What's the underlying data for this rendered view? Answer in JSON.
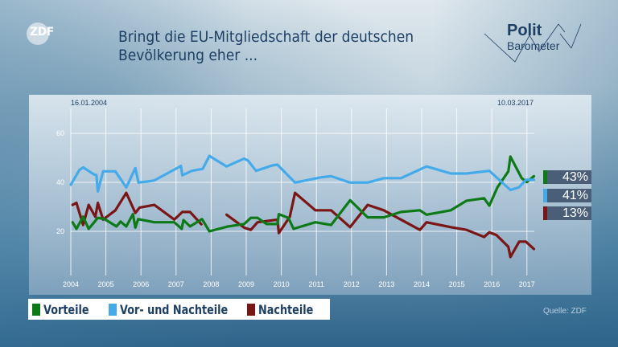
{
  "header": {
    "title_line1": "Bringt die EU-Mitgliedschaft der deutschen",
    "title_line2": "Bevölkerung eher ...",
    "logo": "ZDF",
    "brand_line1": "Polit",
    "brand_line2": "Barometer"
  },
  "source": "Quelle: ZDF",
  "chart_data": {
    "type": "line",
    "title": "Bringt die EU-Mitgliedschaft der deutschen Bevölkerung eher ...",
    "start_label": "16.01.2004",
    "end_label": "10.03.2017",
    "xlim": [
      2004,
      2017.2
    ],
    "ylim": [
      0,
      70
    ],
    "x_ticks": [
      "2004",
      "2005",
      "2006",
      "2007",
      "2008",
      "2009",
      "2010",
      "2011",
      "2012",
      "2013",
      "2014",
      "2015",
      "2016",
      "2017"
    ],
    "y_ticks": [
      "20",
      "40",
      "60"
    ],
    "grid": true,
    "legend_position": "bottom-left",
    "series": [
      {
        "name": "Vorteile",
        "color": "#0e7a17",
        "final_label": "43%",
        "points": [
          [
            2004.05,
            23.7
          ],
          [
            2004.16,
            21
          ],
          [
            2004.35,
            26
          ],
          [
            2004.51,
            21
          ],
          [
            2004.77,
            25.5
          ],
          [
            2004.96,
            25
          ],
          [
            2005.3,
            22
          ],
          [
            2005.42,
            24
          ],
          [
            2005.58,
            22
          ],
          [
            2005.77,
            27
          ],
          [
            2005.84,
            21.5
          ],
          [
            2005.92,
            25
          ],
          [
            2006.38,
            23.7
          ],
          [
            2006.95,
            23.7
          ],
          [
            2007.16,
            21
          ],
          [
            2007.21,
            24.6
          ],
          [
            2007.4,
            22
          ],
          [
            2007.74,
            25
          ],
          [
            2007.95,
            20
          ],
          [
            2008.48,
            22
          ],
          [
            2008.94,
            23
          ],
          [
            2009.13,
            25.5
          ],
          [
            2009.32,
            25.5
          ],
          [
            2009.58,
            23
          ],
          [
            2009.89,
            23
          ],
          [
            2009.93,
            27
          ],
          [
            2010.2,
            25.5
          ],
          [
            2010.35,
            21
          ],
          [
            2010.97,
            23.7
          ],
          [
            2011.42,
            22.6
          ],
          [
            2011.96,
            32.7
          ],
          [
            2012.46,
            25.7
          ],
          [
            2012.92,
            25.7
          ],
          [
            2013.41,
            27.9
          ],
          [
            2013.95,
            28.6
          ],
          [
            2014.14,
            26.8
          ],
          [
            2014.83,
            28.6
          ],
          [
            2015.28,
            32.5
          ],
          [
            2015.78,
            33.5
          ],
          [
            2015.93,
            30.5
          ],
          [
            2016.16,
            38
          ],
          [
            2016.47,
            44.5
          ],
          [
            2016.53,
            50.5
          ],
          [
            2016.85,
            41.7
          ],
          [
            2017.0,
            40.1
          ],
          [
            2017.2,
            42.5
          ]
        ]
      },
      {
        "name": "Vor- und Nachteile",
        "color": "#45aaea",
        "final_label": "41%",
        "points": [
          [
            2004.0,
            39
          ],
          [
            2004.24,
            45
          ],
          [
            2004.35,
            46.1
          ],
          [
            2004.66,
            43.2
          ],
          [
            2004.73,
            43
          ],
          [
            2004.77,
            36.3
          ],
          [
            2004.92,
            44.5
          ],
          [
            2005.27,
            44.5
          ],
          [
            2005.58,
            37.9
          ],
          [
            2005.84,
            45.8
          ],
          [
            2005.93,
            39.9
          ],
          [
            2006.37,
            40.7
          ],
          [
            2007.14,
            46.7
          ],
          [
            2007.18,
            42.9
          ],
          [
            2007.45,
            44.7
          ],
          [
            2007.76,
            45.5
          ],
          [
            2007.95,
            50.8
          ],
          [
            2008.44,
            46.5
          ],
          [
            2008.94,
            49.7
          ],
          [
            2009.05,
            48.9
          ],
          [
            2009.28,
            44.7
          ],
          [
            2009.74,
            46.9
          ],
          [
            2009.89,
            47.2
          ],
          [
            2010.39,
            39.9
          ],
          [
            2011.16,
            42.1
          ],
          [
            2011.42,
            42.5
          ],
          [
            2011.96,
            39.9
          ],
          [
            2012.46,
            39.9
          ],
          [
            2012.92,
            41.7
          ],
          [
            2013.41,
            41.7
          ],
          [
            2014.14,
            46.5
          ],
          [
            2014.83,
            43.6
          ],
          [
            2015.28,
            43.6
          ],
          [
            2015.93,
            44.7
          ],
          [
            2016.53,
            36.9
          ],
          [
            2016.78,
            38
          ],
          [
            2016.97,
            41
          ],
          [
            2017.2,
            41
          ]
        ]
      },
      {
        "name": "Nachteile",
        "color": "#7a1616",
        "final_label": "13%",
        "points": [
          [
            2004.05,
            30.8
          ],
          [
            2004.16,
            31.6
          ],
          [
            2004.35,
            22.6
          ],
          [
            2004.51,
            30.8
          ],
          [
            2004.7,
            25.9
          ],
          [
            2004.77,
            31.6
          ],
          [
            2004.92,
            24.8
          ],
          [
            2005.27,
            28.6
          ],
          [
            2005.58,
            35.7
          ],
          [
            2005.84,
            27.5
          ],
          [
            2005.96,
            29.7
          ],
          [
            2006.38,
            30.8
          ],
          [
            2006.95,
            24.8
          ],
          [
            2007.18,
            27.9
          ],
          [
            2007.4,
            27.9
          ],
          [
            2007.72,
            22.9
          ],
          null,
          [
            2008.44,
            26.8
          ],
          [
            2008.94,
            21.5
          ],
          [
            2009.13,
            20.6
          ],
          [
            2009.32,
            23.7
          ],
          [
            2009.89,
            24.8
          ],
          [
            2009.93,
            19.3
          ],
          [
            2010.24,
            25.9
          ],
          [
            2010.39,
            35.7
          ],
          [
            2010.97,
            28.6
          ],
          [
            2011.42,
            28.6
          ],
          [
            2011.96,
            21.7
          ],
          [
            2012.46,
            30.8
          ],
          [
            2012.92,
            28.6
          ],
          [
            2013.95,
            20.6
          ],
          [
            2014.14,
            23.7
          ],
          [
            2014.83,
            21.7
          ],
          [
            2015.28,
            20.6
          ],
          [
            2015.78,
            17.7
          ],
          [
            2015.93,
            19.6
          ],
          [
            2016.13,
            18.5
          ],
          [
            2016.47,
            13.7
          ],
          [
            2016.53,
            9.5
          ],
          [
            2016.78,
            15.8
          ],
          [
            2016.97,
            15.8
          ],
          [
            2017.2,
            12.8
          ]
        ]
      }
    ]
  }
}
